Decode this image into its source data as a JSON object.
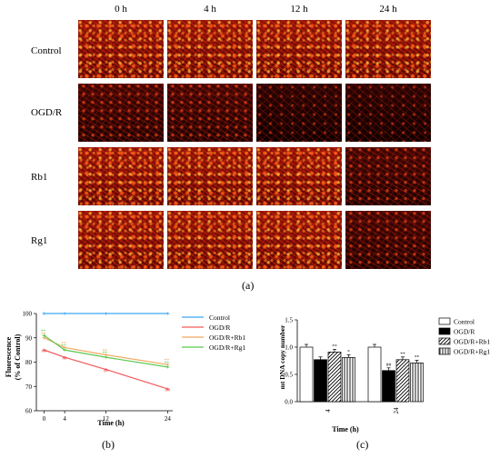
{
  "panel_a": {
    "time_headers": [
      "0 h",
      "4 h",
      "12 h",
      "24 h"
    ],
    "row_labels": [
      "Control",
      "OGD/R",
      "Rb1",
      "Rg1"
    ],
    "caption": "(a)"
  },
  "panel_b": {
    "caption": "(b)"
  },
  "panel_c": {
    "caption": "(c)"
  },
  "chart_data": [
    {
      "type": "line",
      "title": "",
      "xlabel": "Time (h)",
      "ylabel": "Fluorescence (% of Control)",
      "x": [
        0,
        4,
        12,
        24
      ],
      "xlim": [
        -1.5,
        25
      ],
      "ylim": [
        60,
        100
      ],
      "yticks": [
        60,
        70,
        80,
        90,
        100
      ],
      "xticks": [
        0,
        4,
        12,
        24
      ],
      "grid": false,
      "legend": "right",
      "series": [
        {
          "name": "Control",
          "color": "#3aa6ee",
          "values": [
            100,
            100,
            100,
            100
          ],
          "labels": [
            "",
            "",
            "",
            ""
          ]
        },
        {
          "name": "OGD/R",
          "color": "#f25a5a",
          "values": [
            85,
            82,
            77,
            69
          ],
          "labels": [
            "##",
            "##",
            "##",
            "##"
          ]
        },
        {
          "name": "OGD/R+Rb1",
          "color": "#f2a860",
          "values": [
            90,
            86,
            83,
            79
          ],
          "labels": [
            "**",
            "**",
            "**",
            "**"
          ]
        },
        {
          "name": "OGD/R+Rg1",
          "color": "#5cc84e",
          "values": [
            91,
            85,
            82,
            78
          ],
          "labels": [
            "**",
            "**",
            "**",
            "**"
          ]
        }
      ]
    },
    {
      "type": "bar",
      "title": "",
      "xlabel": "Time (h)",
      "ylabel": "mt DNA copy number",
      "categories": [
        "4",
        "24"
      ],
      "ylim": [
        0,
        1.5
      ],
      "yticks": [
        0,
        0.5,
        1.0,
        1.5
      ],
      "grid": false,
      "legend": "right",
      "series": [
        {
          "name": "Control",
          "fill": "white",
          "values": [
            1.0,
            1.0
          ],
          "labels": [
            "",
            ""
          ]
        },
        {
          "name": "OGD/R",
          "fill": "black",
          "values": [
            0.77,
            0.57
          ],
          "labels": [
            "",
            "##"
          ]
        },
        {
          "name": "OGD/R+Rb1",
          "fill": "diagonal",
          "values": [
            0.91,
            0.77
          ],
          "labels": [
            "**",
            "**"
          ]
        },
        {
          "name": "OGD/R+Rg1",
          "fill": "vertical",
          "values": [
            0.81,
            0.71
          ],
          "labels": [
            "*",
            "**"
          ]
        }
      ]
    }
  ]
}
